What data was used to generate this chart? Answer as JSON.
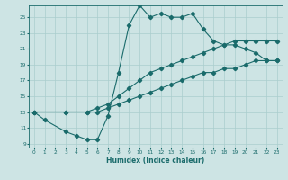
{
  "xlabel": "Humidex (Indice chaleur)",
  "ylabel": "",
  "xlim": [
    -0.5,
    23.5
  ],
  "ylim": [
    8.5,
    26.5
  ],
  "xticks": [
    0,
    1,
    2,
    3,
    4,
    5,
    6,
    7,
    8,
    9,
    10,
    11,
    12,
    13,
    14,
    15,
    16,
    17,
    18,
    19,
    20,
    21,
    22,
    23
  ],
  "yticks": [
    9,
    11,
    13,
    15,
    17,
    19,
    21,
    23,
    25
  ],
  "background_color": "#cde4e4",
  "grid_color": "#aacece",
  "line_color": "#1a6b6b",
  "line1_x": [
    0,
    1,
    3,
    4,
    5,
    6,
    7,
    8,
    9,
    10,
    11,
    12,
    13,
    14,
    15,
    16,
    17,
    18,
    19,
    20,
    21,
    22,
    23
  ],
  "line1_y": [
    13,
    12,
    10.5,
    10,
    9.5,
    9.5,
    12.5,
    18,
    24,
    26.5,
    25,
    25.5,
    25,
    25,
    25.5,
    23.5,
    22,
    21.5,
    21.5,
    21,
    20.5,
    19.5,
    19.5
  ],
  "line2_x": [
    0,
    3,
    5,
    6,
    7,
    8,
    9,
    10,
    11,
    12,
    13,
    14,
    15,
    16,
    17,
    18,
    19,
    20,
    21,
    22,
    23
  ],
  "line2_y": [
    13,
    13,
    13,
    13.5,
    14,
    15,
    16,
    17,
    18,
    18.5,
    19,
    19.5,
    20,
    20.5,
    21,
    21.5,
    22,
    22,
    22,
    22,
    22
  ],
  "line3_x": [
    0,
    3,
    5,
    6,
    7,
    8,
    9,
    10,
    11,
    12,
    13,
    14,
    15,
    16,
    17,
    18,
    19,
    20,
    21,
    22,
    23
  ],
  "line3_y": [
    13,
    13,
    13,
    13,
    13.5,
    14,
    14.5,
    15,
    15.5,
    16,
    16.5,
    17,
    17.5,
    18,
    18,
    18.5,
    18.5,
    19,
    19.5,
    19.5,
    19.5
  ]
}
